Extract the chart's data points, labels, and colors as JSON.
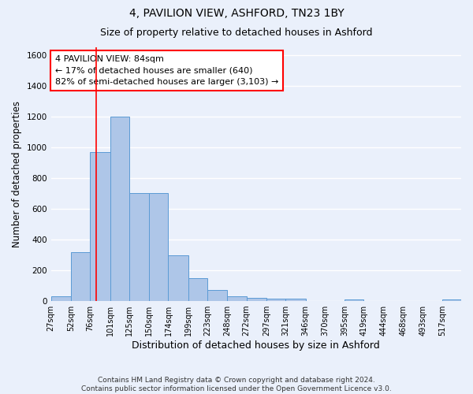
{
  "title": "4, PAVILION VIEW, ASHFORD, TN23 1BY",
  "subtitle": "Size of property relative to detached houses in Ashford",
  "xlabel": "Distribution of detached houses by size in Ashford",
  "ylabel": "Number of detached properties",
  "footer_line1": "Contains HM Land Registry data © Crown copyright and database right 2024.",
  "footer_line2": "Contains public sector information licensed under the Open Government Licence v3.0.",
  "annotation_line1": "4 PAVILION VIEW: 84sqm",
  "annotation_line2": "← 17% of detached houses are smaller (640)",
  "annotation_line3": "82% of semi-detached houses are larger (3,103) →",
  "bar_edges": [
    27,
    52,
    76,
    101,
    125,
    150,
    174,
    199,
    223,
    248,
    272,
    297,
    321,
    346,
    370,
    395,
    419,
    444,
    468,
    493,
    517
  ],
  "bar_heights": [
    30,
    320,
    970,
    1200,
    700,
    700,
    300,
    150,
    70,
    30,
    20,
    15,
    15,
    0,
    0,
    10,
    0,
    0,
    0,
    0,
    10
  ],
  "bar_color": "#aec6e8",
  "bar_edge_color": "#5b9bd5",
  "red_line_x": 84,
  "ylim": [
    0,
    1650
  ],
  "yticks": [
    0,
    200,
    400,
    600,
    800,
    1000,
    1200,
    1400,
    1600
  ],
  "bg_color": "#eaf0fb",
  "plot_bg_color": "#eaf0fb",
  "grid_color": "#ffffff",
  "title_fontsize": 10,
  "subtitle_fontsize": 9,
  "annotation_fontsize": 8,
  "tick_fontsize": 7,
  "ylabel_fontsize": 8.5,
  "xlabel_fontsize": 9,
  "footer_fontsize": 6.5
}
